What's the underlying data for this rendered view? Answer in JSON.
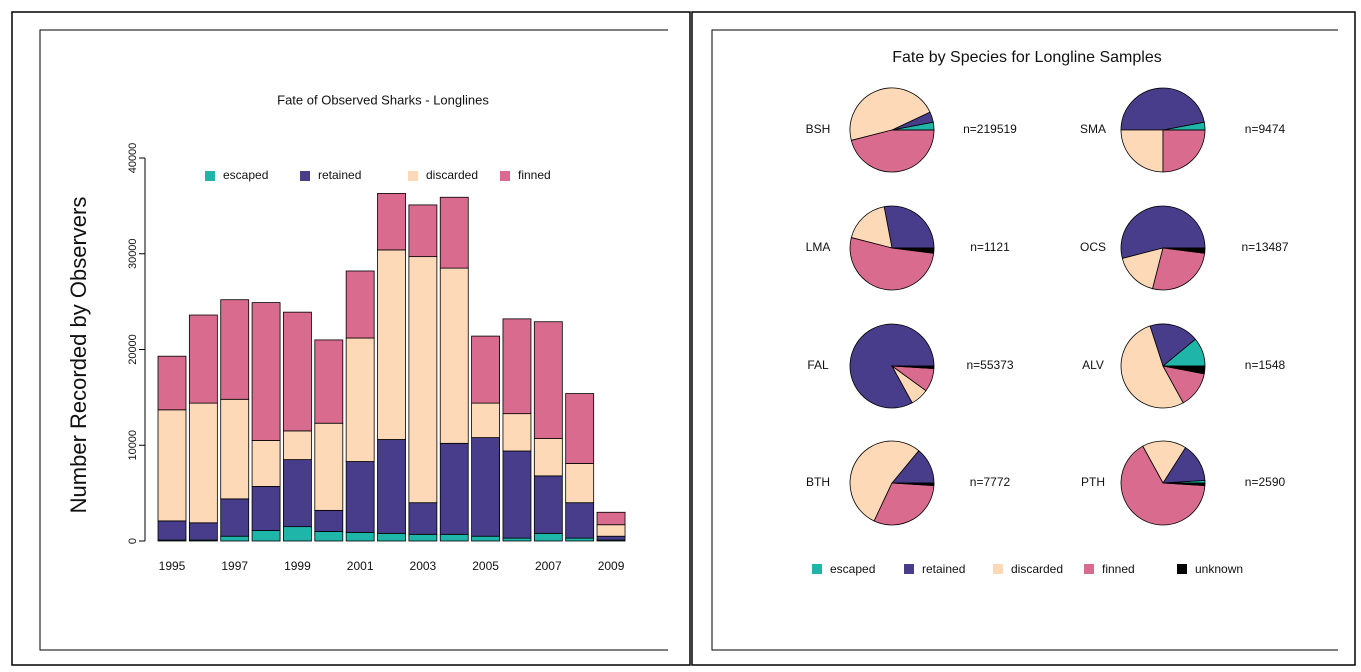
{
  "chart_data": [
    {
      "type": "bar",
      "stacked": true,
      "title": "Fate of Observed Sharks - Longlines",
      "y_label": "Number Recorded by Observers",
      "categories": [
        "1995",
        null,
        "1997",
        null,
        "1999",
        null,
        "2001",
        null,
        "2003",
        null,
        "2005",
        null,
        "2007",
        null,
        "2009"
      ],
      "series": [
        {
          "name": "escaped",
          "color": "#1fb5a8",
          "values": [
            100,
            100,
            500,
            1100,
            1500,
            1000,
            900,
            800,
            700,
            700,
            500,
            300,
            800,
            300,
            100
          ]
        },
        {
          "name": "retained",
          "color": "#483d8b",
          "values": [
            2000,
            1800,
            3900,
            4600,
            7000,
            2200,
            7400,
            9800,
            3300,
            9500,
            10300,
            9100,
            6000,
            3700,
            400
          ]
        },
        {
          "name": "discarded",
          "color": "#fdd9b7",
          "values": [
            11600,
            12500,
            10400,
            4800,
            3000,
            9100,
            12900,
            19800,
            25700,
            18300,
            3600,
            3900,
            3900,
            4100,
            1200
          ]
        },
        {
          "name": "finned",
          "color": "#d86b8e",
          "values": [
            5600,
            9200,
            10400,
            14400,
            12400,
            8700,
            7000,
            5900,
            5400,
            7400,
            7000,
            9900,
            12200,
            7300,
            1300
          ]
        }
      ],
      "ylim": [
        0,
        40000
      ],
      "yticks": [
        0,
        10000,
        20000,
        30000,
        40000
      ]
    },
    {
      "type": "pie",
      "title": "Fate by Species for Longline Samples",
      "categories": [
        "BSH",
        "SMA",
        "LMA",
        "OCS",
        "FAL",
        "ALV",
        "BTH",
        "PTH"
      ],
      "labels": [
        "n=219519",
        "n=9474",
        "n=1121",
        "n=13487",
        "n=55373",
        "n=1548",
        "n=7772",
        "n=2590"
      ],
      "series": [
        {
          "name": "escaped",
          "color": "#1fb5a8",
          "values": [
            3,
            3,
            0,
            0,
            0,
            11,
            0,
            1
          ]
        },
        {
          "name": "retained",
          "color": "#483d8b",
          "values": [
            4,
            47,
            28,
            54,
            83,
            19,
            14,
            15
          ]
        },
        {
          "name": "discarded",
          "color": "#fdd9b7",
          "values": [
            47,
            25,
            18,
            17,
            7,
            53,
            54,
            17
          ]
        },
        {
          "name": "finned",
          "color": "#d86b8e",
          "values": [
            46,
            25,
            52,
            27,
            9,
            14,
            31,
            66
          ]
        },
        {
          "name": "unknown",
          "color": "#000000",
          "values": [
            0,
            0,
            2,
            2,
            1,
            3,
            1,
            1
          ]
        }
      ]
    }
  ]
}
